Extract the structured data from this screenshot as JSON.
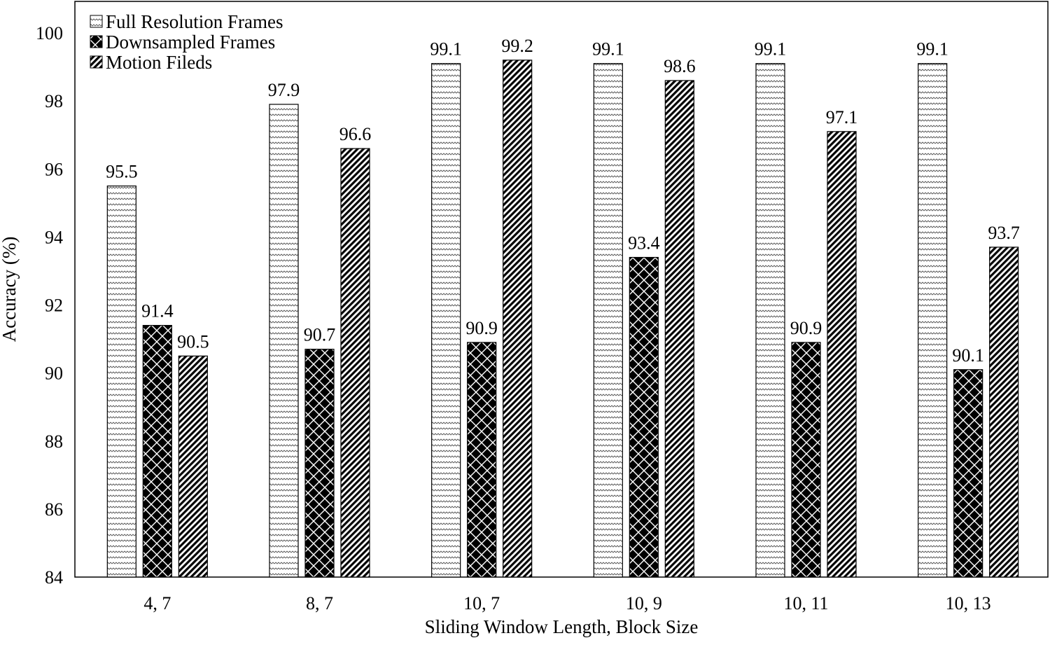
{
  "chart_data": {
    "type": "bar",
    "title": "",
    "xlabel": "Sliding Window Length, Block Size",
    "ylabel": "Accuracy (%)",
    "ylim": [
      84,
      100
    ],
    "yticks": [
      84,
      86,
      88,
      90,
      92,
      94,
      96,
      98,
      100
    ],
    "grid": false,
    "legend_position": "top-left",
    "categories": [
      "4, 7",
      "8, 7",
      "10, 7",
      "10, 9",
      "10, 11",
      "10, 13"
    ],
    "series": [
      {
        "name": "Full Resolution Frames",
        "pattern": "zigzag",
        "values": [
          95.5,
          97.9,
          99.1,
          99.1,
          99.1,
          99.1
        ],
        "labels": [
          "95.5",
          "97.9",
          "99.1",
          "99.1",
          "99.1",
          "99.1"
        ]
      },
      {
        "name": "Downsampled Frames",
        "pattern": "diamond-checker",
        "values": [
          91.4,
          90.7,
          90.9,
          93.4,
          90.9,
          90.1
        ],
        "labels": [
          "91.4",
          "90.7",
          "90.9",
          "93.4",
          "90.9",
          "90.1"
        ]
      },
      {
        "name": "Motion Fileds",
        "pattern": "diagonal-hatch",
        "values": [
          90.5,
          96.6,
          99.2,
          98.6,
          97.1,
          93.7
        ],
        "labels": [
          "90.5",
          "96.6",
          "99.2",
          "98.6",
          "97.1",
          "93.7"
        ]
      }
    ]
  }
}
